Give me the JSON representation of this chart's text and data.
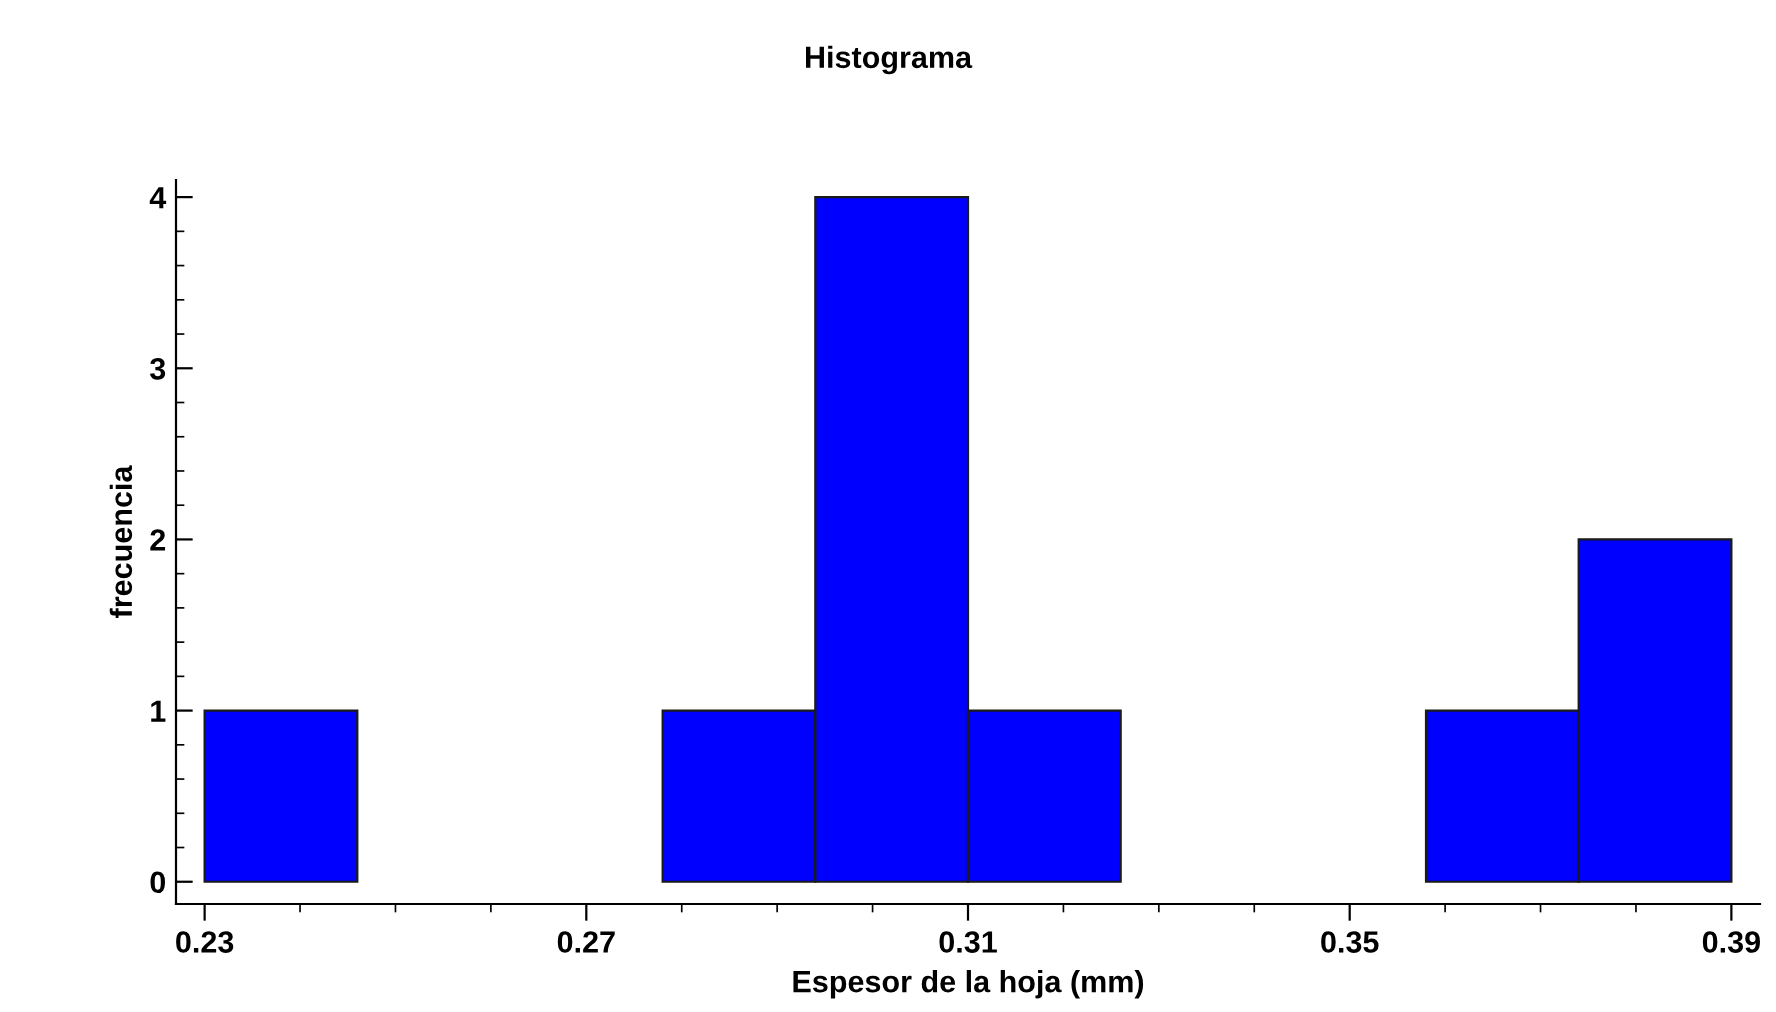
{
  "chart_data": {
    "type": "histogram",
    "title": "Histograma",
    "xlabel": "Espesor de la hoja (mm)",
    "ylabel": "frecuencia",
    "bins": [
      0.23,
      0.246,
      0.262,
      0.278,
      0.294,
      0.31,
      0.326,
      0.342,
      0.358,
      0.374,
      0.39
    ],
    "values": [
      1,
      0,
      0,
      1,
      4,
      1,
      0,
      0,
      1,
      2
    ],
    "color": "#0000ff",
    "xlim": [
      0.227,
      0.393
    ],
    "xticks": [
      {
        "value": 0.23,
        "label": "0.23"
      },
      {
        "value": 0.27,
        "label": "0.27"
      },
      {
        "value": 0.31,
        "label": "0.31"
      },
      {
        "value": 0.35,
        "label": "0.35"
      },
      {
        "value": 0.39,
        "label": "0.39"
      }
    ],
    "ylim": [
      -0.13,
      4.1
    ],
    "yticks": [
      0,
      1,
      2,
      3,
      4
    ],
    "grid": false
  }
}
